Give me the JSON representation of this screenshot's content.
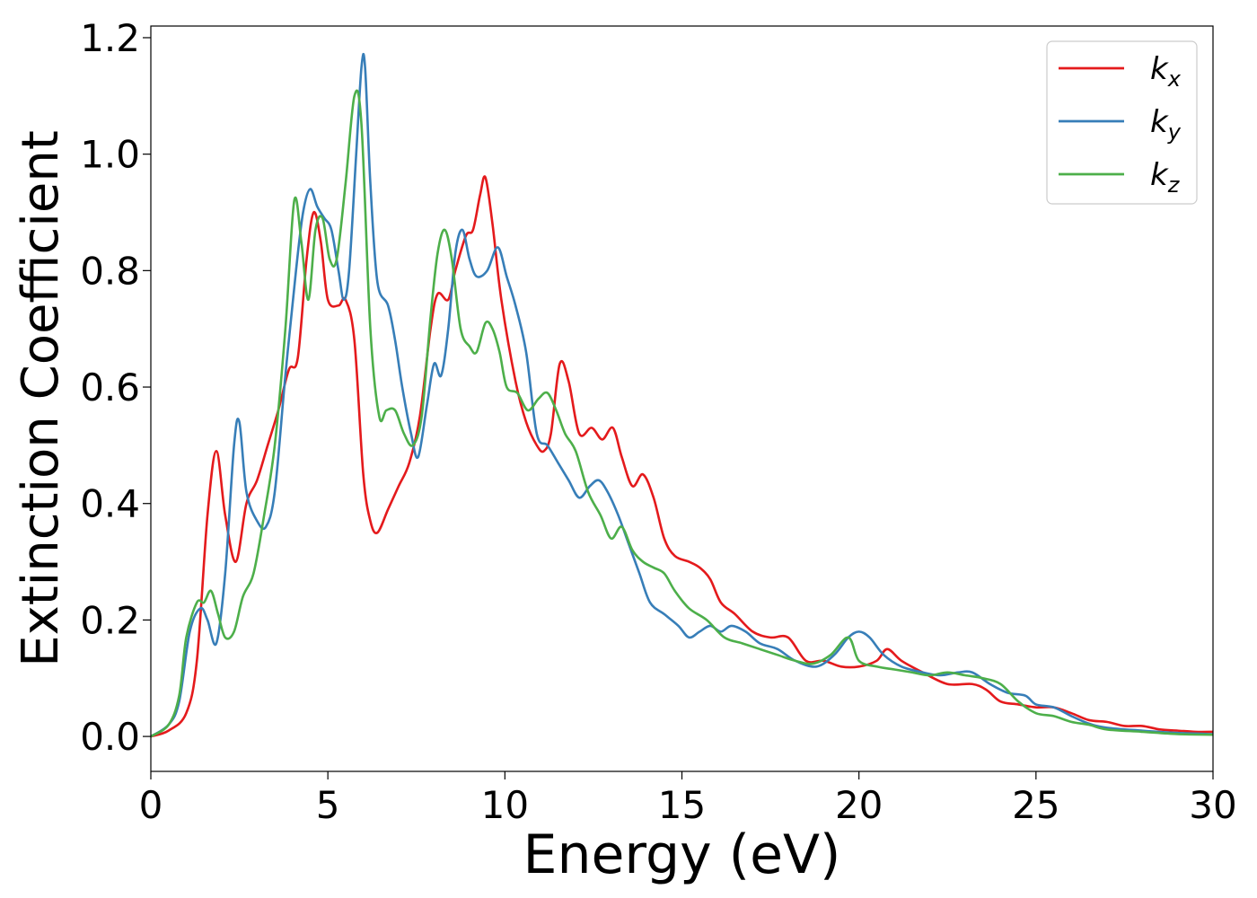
{
  "chart_data": {
    "type": "line",
    "title": "",
    "xlabel": "Energy (eV)",
    "ylabel": "Extinction Coefficient",
    "xlim": [
      0,
      30
    ],
    "ylim": [
      -0.06,
      1.22
    ],
    "xticks": [
      0,
      5,
      10,
      15,
      20,
      25,
      30
    ],
    "xtick_labels": [
      "0",
      "5",
      "10",
      "15",
      "20",
      "25",
      "30"
    ],
    "yticks": [
      0.0,
      0.2,
      0.4,
      0.6,
      0.8,
      1.0,
      1.2
    ],
    "ytick_labels": [
      "0.0",
      "0.2",
      "0.4",
      "0.6",
      "0.8",
      "1.0",
      "1.2"
    ],
    "grid": false,
    "legend": {
      "position": "top-right"
    },
    "series": [
      {
        "name": "k",
        "subscript": "x",
        "color": "#e41a1c",
        "points": [
          [
            0,
            0
          ],
          [
            0.5,
            0.01
          ],
          [
            1.0,
            0.04
          ],
          [
            1.3,
            0.13
          ],
          [
            1.6,
            0.38
          ],
          [
            1.85,
            0.49
          ],
          [
            2.1,
            0.38
          ],
          [
            2.4,
            0.3
          ],
          [
            2.7,
            0.4
          ],
          [
            3.0,
            0.44
          ],
          [
            3.3,
            0.5
          ],
          [
            3.6,
            0.56
          ],
          [
            3.9,
            0.63
          ],
          [
            4.15,
            0.65
          ],
          [
            4.4,
            0.82
          ],
          [
            4.6,
            0.9
          ],
          [
            4.8,
            0.85
          ],
          [
            5.0,
            0.75
          ],
          [
            5.3,
            0.74
          ],
          [
            5.5,
            0.75
          ],
          [
            5.75,
            0.68
          ],
          [
            6.0,
            0.45
          ],
          [
            6.2,
            0.37
          ],
          [
            6.4,
            0.35
          ],
          [
            6.7,
            0.39
          ],
          [
            7.0,
            0.43
          ],
          [
            7.3,
            0.47
          ],
          [
            7.6,
            0.55
          ],
          [
            7.9,
            0.7
          ],
          [
            8.1,
            0.76
          ],
          [
            8.4,
            0.75
          ],
          [
            8.6,
            0.8
          ],
          [
            8.9,
            0.86
          ],
          [
            9.1,
            0.87
          ],
          [
            9.3,
            0.93
          ],
          [
            9.45,
            0.96
          ],
          [
            9.65,
            0.88
          ],
          [
            9.9,
            0.75
          ],
          [
            10.3,
            0.61
          ],
          [
            10.6,
            0.54
          ],
          [
            10.9,
            0.5
          ],
          [
            11.1,
            0.49
          ],
          [
            11.3,
            0.52
          ],
          [
            11.55,
            0.64
          ],
          [
            11.8,
            0.61
          ],
          [
            12.1,
            0.52
          ],
          [
            12.45,
            0.53
          ],
          [
            12.75,
            0.51
          ],
          [
            13.05,
            0.53
          ],
          [
            13.3,
            0.48
          ],
          [
            13.6,
            0.43
          ],
          [
            13.9,
            0.45
          ],
          [
            14.2,
            0.41
          ],
          [
            14.5,
            0.34
          ],
          [
            14.8,
            0.31
          ],
          [
            15.2,
            0.3
          ],
          [
            15.5,
            0.29
          ],
          [
            15.8,
            0.27
          ],
          [
            16.1,
            0.23
          ],
          [
            16.5,
            0.21
          ],
          [
            17.0,
            0.18
          ],
          [
            17.5,
            0.17
          ],
          [
            18.0,
            0.17
          ],
          [
            18.5,
            0.13
          ],
          [
            19.0,
            0.13
          ],
          [
            19.5,
            0.12
          ],
          [
            20.0,
            0.12
          ],
          [
            20.5,
            0.13
          ],
          [
            20.8,
            0.15
          ],
          [
            21.2,
            0.13
          ],
          [
            21.8,
            0.11
          ],
          [
            22.5,
            0.09
          ],
          [
            23.2,
            0.09
          ],
          [
            23.6,
            0.08
          ],
          [
            24.0,
            0.06
          ],
          [
            24.5,
            0.055
          ],
          [
            25.0,
            0.05
          ],
          [
            25.5,
            0.05
          ],
          [
            26.0,
            0.04
          ],
          [
            26.5,
            0.028
          ],
          [
            27.0,
            0.025
          ],
          [
            27.5,
            0.018
          ],
          [
            28.0,
            0.018
          ],
          [
            28.5,
            0.012
          ],
          [
            29.0,
            0.01
          ],
          [
            29.5,
            0.008
          ],
          [
            30.0,
            0.008
          ]
        ]
      },
      {
        "name": "k",
        "subscript": "y",
        "color": "#377eb8",
        "points": [
          [
            0,
            0
          ],
          [
            0.5,
            0.02
          ],
          [
            0.8,
            0.06
          ],
          [
            1.1,
            0.18
          ],
          [
            1.4,
            0.22
          ],
          [
            1.6,
            0.2
          ],
          [
            1.85,
            0.16
          ],
          [
            2.1,
            0.28
          ],
          [
            2.35,
            0.5
          ],
          [
            2.5,
            0.54
          ],
          [
            2.7,
            0.42
          ],
          [
            3.0,
            0.37
          ],
          [
            3.25,
            0.36
          ],
          [
            3.5,
            0.42
          ],
          [
            3.8,
            0.62
          ],
          [
            4.1,
            0.8
          ],
          [
            4.3,
            0.9
          ],
          [
            4.5,
            0.94
          ],
          [
            4.7,
            0.91
          ],
          [
            4.9,
            0.89
          ],
          [
            5.1,
            0.87
          ],
          [
            5.3,
            0.8
          ],
          [
            5.45,
            0.75
          ],
          [
            5.6,
            0.8
          ],
          [
            5.8,
            1.0
          ],
          [
            5.95,
            1.15
          ],
          [
            6.05,
            1.15
          ],
          [
            6.2,
            0.95
          ],
          [
            6.4,
            0.78
          ],
          [
            6.7,
            0.74
          ],
          [
            6.9,
            0.68
          ],
          [
            7.1,
            0.6
          ],
          [
            7.35,
            0.52
          ],
          [
            7.55,
            0.48
          ],
          [
            7.8,
            0.57
          ],
          [
            8.0,
            0.64
          ],
          [
            8.2,
            0.62
          ],
          [
            8.4,
            0.7
          ],
          [
            8.6,
            0.83
          ],
          [
            8.8,
            0.87
          ],
          [
            9.0,
            0.82
          ],
          [
            9.2,
            0.79
          ],
          [
            9.5,
            0.8
          ],
          [
            9.8,
            0.84
          ],
          [
            10.05,
            0.79
          ],
          [
            10.3,
            0.74
          ],
          [
            10.6,
            0.66
          ],
          [
            10.9,
            0.52
          ],
          [
            11.2,
            0.5
          ],
          [
            11.5,
            0.47
          ],
          [
            11.8,
            0.44
          ],
          [
            12.1,
            0.41
          ],
          [
            12.4,
            0.43
          ],
          [
            12.65,
            0.44
          ],
          [
            12.9,
            0.42
          ],
          [
            13.2,
            0.38
          ],
          [
            13.5,
            0.33
          ],
          [
            13.8,
            0.28
          ],
          [
            14.1,
            0.23
          ],
          [
            14.5,
            0.21
          ],
          [
            14.9,
            0.19
          ],
          [
            15.2,
            0.17
          ],
          [
            15.5,
            0.18
          ],
          [
            15.8,
            0.19
          ],
          [
            16.1,
            0.18
          ],
          [
            16.4,
            0.19
          ],
          [
            16.8,
            0.18
          ],
          [
            17.2,
            0.16
          ],
          [
            17.7,
            0.15
          ],
          [
            18.2,
            0.13
          ],
          [
            18.8,
            0.12
          ],
          [
            19.3,
            0.14
          ],
          [
            19.7,
            0.17
          ],
          [
            20.0,
            0.18
          ],
          [
            20.3,
            0.17
          ],
          [
            20.7,
            0.14
          ],
          [
            21.2,
            0.12
          ],
          [
            21.8,
            0.11
          ],
          [
            22.3,
            0.105
          ],
          [
            22.8,
            0.11
          ],
          [
            23.2,
            0.11
          ],
          [
            23.7,
            0.09
          ],
          [
            24.2,
            0.075
          ],
          [
            24.7,
            0.07
          ],
          [
            25.0,
            0.055
          ],
          [
            25.5,
            0.05
          ],
          [
            26.0,
            0.035
          ],
          [
            26.5,
            0.022
          ],
          [
            27.0,
            0.015
          ],
          [
            28.0,
            0.01
          ],
          [
            29.0,
            0.006
          ],
          [
            30.0,
            0.004
          ]
        ]
      },
      {
        "name": "k",
        "subscript": "z",
        "color": "#4daf4a",
        "points": [
          [
            0,
            0
          ],
          [
            0.5,
            0.02
          ],
          [
            0.8,
            0.07
          ],
          [
            1.0,
            0.17
          ],
          [
            1.3,
            0.23
          ],
          [
            1.5,
            0.23
          ],
          [
            1.7,
            0.25
          ],
          [
            1.9,
            0.21
          ],
          [
            2.1,
            0.17
          ],
          [
            2.35,
            0.18
          ],
          [
            2.6,
            0.24
          ],
          [
            2.9,
            0.28
          ],
          [
            3.2,
            0.38
          ],
          [
            3.5,
            0.5
          ],
          [
            3.8,
            0.7
          ],
          [
            4.05,
            0.92
          ],
          [
            4.25,
            0.85
          ],
          [
            4.45,
            0.75
          ],
          [
            4.65,
            0.87
          ],
          [
            4.85,
            0.89
          ],
          [
            5.05,
            0.82
          ],
          [
            5.25,
            0.82
          ],
          [
            5.5,
            0.95
          ],
          [
            5.75,
            1.1
          ],
          [
            5.95,
            1.05
          ],
          [
            6.2,
            0.7
          ],
          [
            6.45,
            0.55
          ],
          [
            6.65,
            0.56
          ],
          [
            6.9,
            0.56
          ],
          [
            7.15,
            0.52
          ],
          [
            7.4,
            0.5
          ],
          [
            7.65,
            0.55
          ],
          [
            7.9,
            0.72
          ],
          [
            8.1,
            0.83
          ],
          [
            8.3,
            0.87
          ],
          [
            8.5,
            0.82
          ],
          [
            8.75,
            0.7
          ],
          [
            9.0,
            0.67
          ],
          [
            9.2,
            0.66
          ],
          [
            9.45,
            0.71
          ],
          [
            9.65,
            0.7
          ],
          [
            9.85,
            0.66
          ],
          [
            10.05,
            0.6
          ],
          [
            10.35,
            0.59
          ],
          [
            10.65,
            0.56
          ],
          [
            10.95,
            0.58
          ],
          [
            11.2,
            0.59
          ],
          [
            11.45,
            0.56
          ],
          [
            11.7,
            0.52
          ],
          [
            12.0,
            0.49
          ],
          [
            12.35,
            0.42
          ],
          [
            12.7,
            0.38
          ],
          [
            13.0,
            0.34
          ],
          [
            13.3,
            0.36
          ],
          [
            13.6,
            0.32
          ],
          [
            13.9,
            0.3
          ],
          [
            14.2,
            0.29
          ],
          [
            14.5,
            0.28
          ],
          [
            14.8,
            0.25
          ],
          [
            15.2,
            0.22
          ],
          [
            15.7,
            0.2
          ],
          [
            16.2,
            0.17
          ],
          [
            16.7,
            0.16
          ],
          [
            17.2,
            0.15
          ],
          [
            17.7,
            0.14
          ],
          [
            18.2,
            0.13
          ],
          [
            18.7,
            0.125
          ],
          [
            19.2,
            0.14
          ],
          [
            19.7,
            0.17
          ],
          [
            20.0,
            0.13
          ],
          [
            20.5,
            0.12
          ],
          [
            21.0,
            0.115
          ],
          [
            21.5,
            0.11
          ],
          [
            22.0,
            0.105
          ],
          [
            22.5,
            0.11
          ],
          [
            23.0,
            0.105
          ],
          [
            23.5,
            0.1
          ],
          [
            24.0,
            0.09
          ],
          [
            24.5,
            0.06
          ],
          [
            25.0,
            0.04
          ],
          [
            25.5,
            0.035
          ],
          [
            26.0,
            0.025
          ],
          [
            26.5,
            0.02
          ],
          [
            27.0,
            0.012
          ],
          [
            28.0,
            0.008
          ],
          [
            29.0,
            0.004
          ],
          [
            30.0,
            0.003
          ]
        ]
      }
    ]
  }
}
